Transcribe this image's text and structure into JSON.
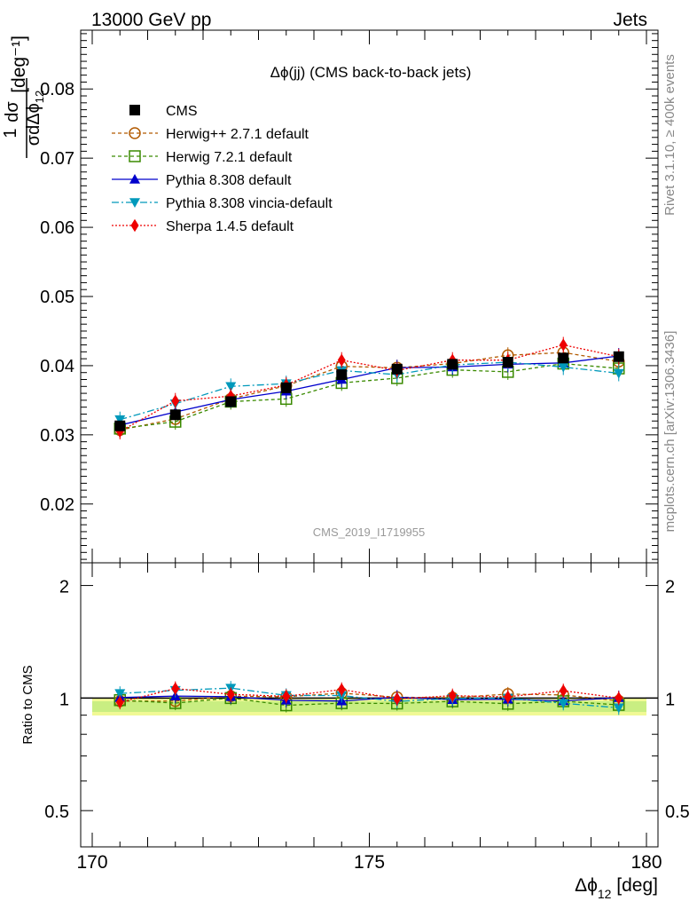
{
  "header": {
    "left": "13000 GeV pp",
    "right": "Jets"
  },
  "side_labels": {
    "rivet": "Rivet 3.1.10, ≥ 400k events",
    "mcplots": "mcplots.cern.ch [arXiv:1306.3436]"
  },
  "chart_data": {
    "type": "line",
    "title": "Δϕ(jj) (CMS back-to-back jets)",
    "watermark": "CMS_2019_I1719955",
    "xlabel": "Δϕ",
    "xlabel_sub": "12",
    "xlabel_unit": " [deg]",
    "xlim": [
      170,
      180
    ],
    "x_ticks": [
      "170",
      "175",
      "180"
    ],
    "ylabel_main": "[deg⁻¹]",
    "ylim": [
      0.0115,
      0.0885
    ],
    "y_ticks": [
      "0.02",
      "0.03",
      "0.04",
      "0.05",
      "0.06",
      "0.07",
      "0.08"
    ],
    "ratio_ylabel": "Ratio to CMS",
    "ratio_ylim": [
      0.4,
      2.3
    ],
    "ratio_ticks": [
      "0.5",
      "1",
      "2"
    ],
    "x": [
      170.5,
      171.5,
      172.5,
      173.5,
      174.5,
      175.5,
      176.5,
      177.5,
      178.5,
      179.5
    ],
    "series": [
      {
        "name": "CMS",
        "color": "#000000",
        "marker": "square-filled",
        "dash": "none",
        "values": [
          0.0313,
          0.0329,
          0.0348,
          0.0368,
          0.0387,
          0.0395,
          0.0402,
          0.0405,
          0.0411,
          0.0413
        ]
      },
      {
        "name": "Herwig++ 2.7.1 default",
        "color": "#b25a00",
        "marker": "circle-open",
        "dash": "4,3",
        "values": [
          0.0307,
          0.0323,
          0.0352,
          0.0371,
          0.0399,
          0.0397,
          0.0403,
          0.0415,
          0.0419,
          0.0406
        ]
      },
      {
        "name": "Herwig 7.2.1 default",
        "color": "#3a8a00",
        "marker": "square-open",
        "dash": "4,3",
        "values": [
          0.0309,
          0.0319,
          0.0348,
          0.0352,
          0.0375,
          0.0382,
          0.0394,
          0.0391,
          0.0403,
          0.0396
        ]
      },
      {
        "name": "Pythia 8.308 default",
        "color": "#0000cc",
        "marker": "triangle-up",
        "dash": "none",
        "values": [
          0.0314,
          0.0333,
          0.0351,
          0.0363,
          0.038,
          0.0397,
          0.0398,
          0.0402,
          0.0404,
          0.0414
        ]
      },
      {
        "name": "Pythia 8.308 vincia-default",
        "color": "#0099bb",
        "marker": "triangle-down",
        "dash": "8,3,2,3",
        "values": [
          0.0322,
          0.0345,
          0.037,
          0.0374,
          0.0393,
          0.0387,
          0.0401,
          0.0405,
          0.0398,
          0.0389
        ]
      },
      {
        "name": "Sherpa 1.4.5 default",
        "color": "#ee0000",
        "marker": "diamond",
        "dash": "2,2",
        "values": [
          0.0305,
          0.0349,
          0.0356,
          0.0372,
          0.0408,
          0.0393,
          0.0408,
          0.0408,
          0.043,
          0.0413
        ]
      }
    ]
  }
}
